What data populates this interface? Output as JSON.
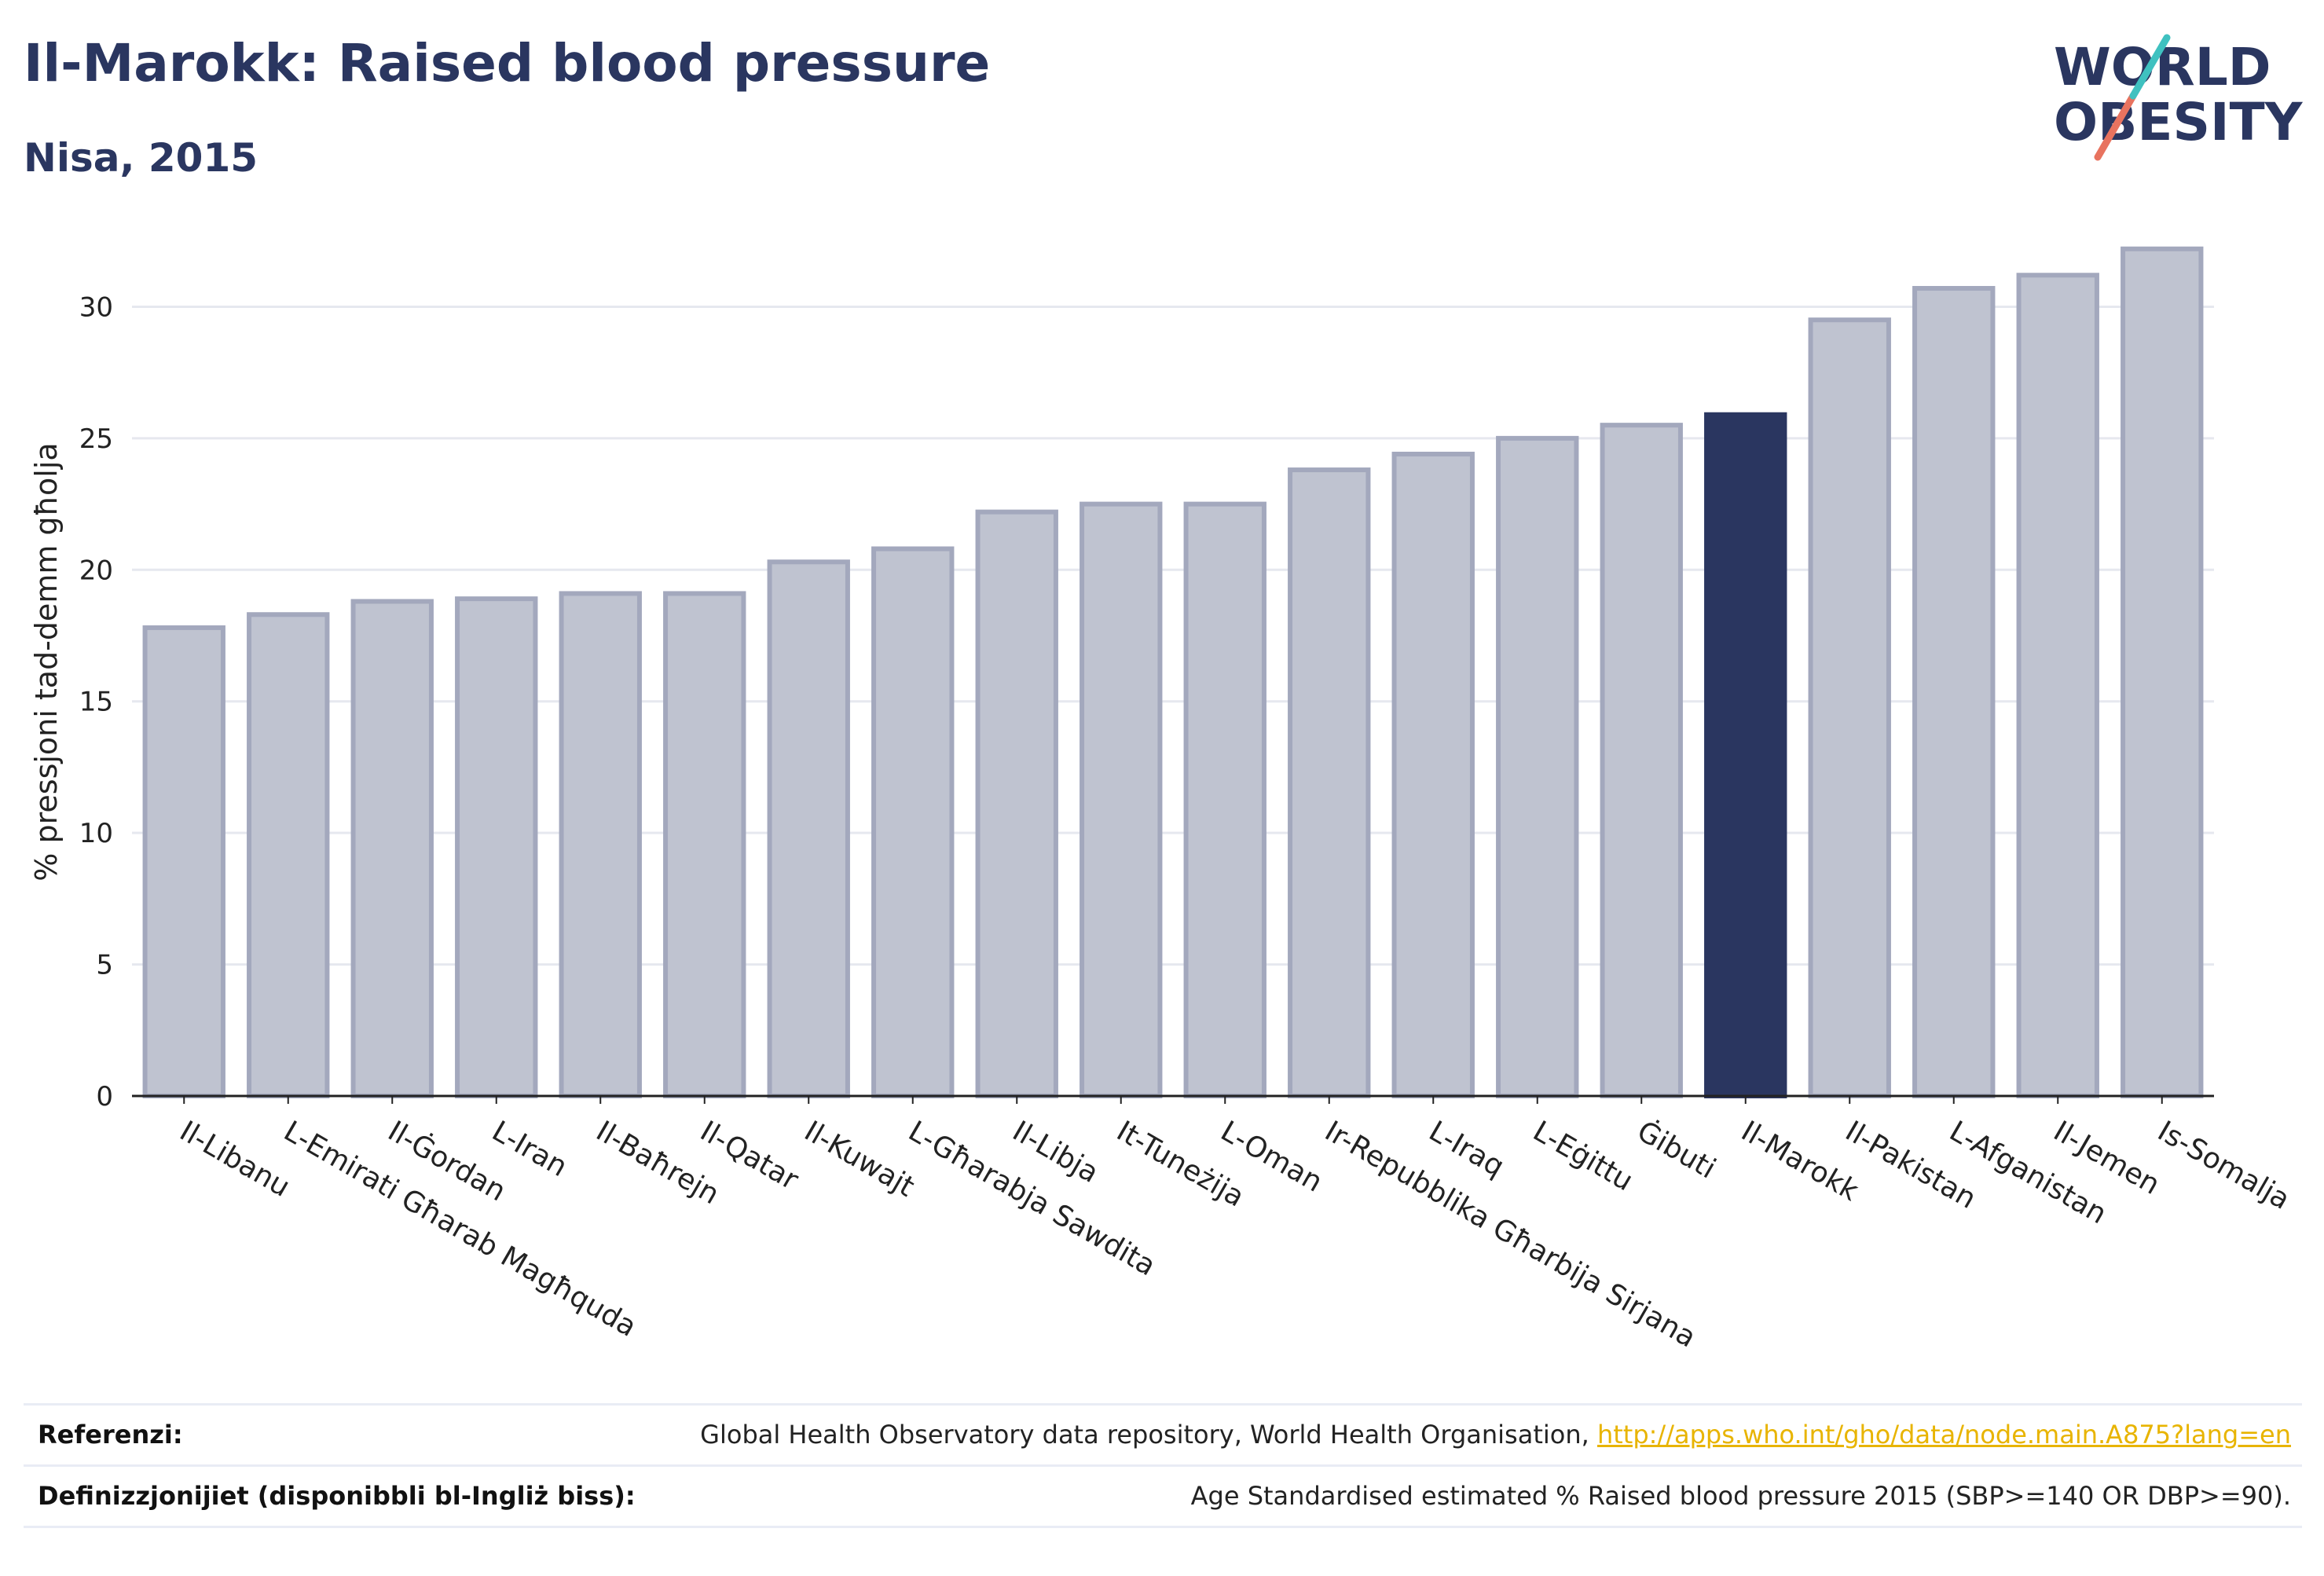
{
  "header": {
    "title": "Il-Marokk: Raised blood pressure",
    "subtitle": "Nisa, 2015"
  },
  "logo": {
    "line1": "WORLD",
    "line2": "OBESITY",
    "accent_teal": "#3fc1c0",
    "accent_coral": "#e8735f",
    "text_color": "#2a3660"
  },
  "colors": {
    "bar_default": "#bfc3d0",
    "bar_default_stroke": "#a3a8bd",
    "bar_highlight": "#2a3660",
    "grid": "#e6e8ef",
    "axis": "#222222"
  },
  "chart_data": {
    "type": "bar",
    "title": "",
    "xlabel": "",
    "ylabel": "% pressjoni tad-demm għolja",
    "ylim": [
      0,
      33
    ],
    "yticks": [
      0,
      5,
      10,
      15,
      20,
      25,
      30
    ],
    "grid": true,
    "highlight": "Il-Marokk",
    "categories": [
      "Il-Libanu",
      "L-Emirati Għarab Magħquda",
      "Il-Ġordan",
      "L-Iran",
      "Il-Baħrejn",
      "Il-Qatar",
      "Il-Kuwajt",
      "L-Għarabja Sawdita",
      "Il-Libja",
      "It-Tuneżija",
      "L-Oman",
      "Ir-Repubblika Għarbija Sirjana",
      "L-Iraq",
      "L-Eġittu",
      "Ġibuti",
      "Il-Marokk",
      "Il-Pakistan",
      "L-Afganistan",
      "Il-Jemen",
      "Is-Somalja"
    ],
    "values": [
      17.8,
      18.3,
      18.8,
      18.9,
      19.1,
      19.1,
      20.3,
      20.8,
      22.2,
      22.5,
      22.5,
      23.8,
      24.4,
      25.0,
      25.5,
      25.9,
      29.5,
      30.7,
      31.2,
      32.2
    ]
  },
  "footer": {
    "references_label": "Referenzi:",
    "references_text": "Global Health Observatory data repository, World Health Organisation, ",
    "references_link": "http://apps.who.int/gho/data/node.main.A875?lang=en",
    "definitions_label": "Definizzjonijiet (disponibbli bl-Ingliż biss):",
    "definitions_text": "Age Standardised estimated % Raised blood pressure 2015 (SBP>=140 OR DBP>=90)."
  }
}
